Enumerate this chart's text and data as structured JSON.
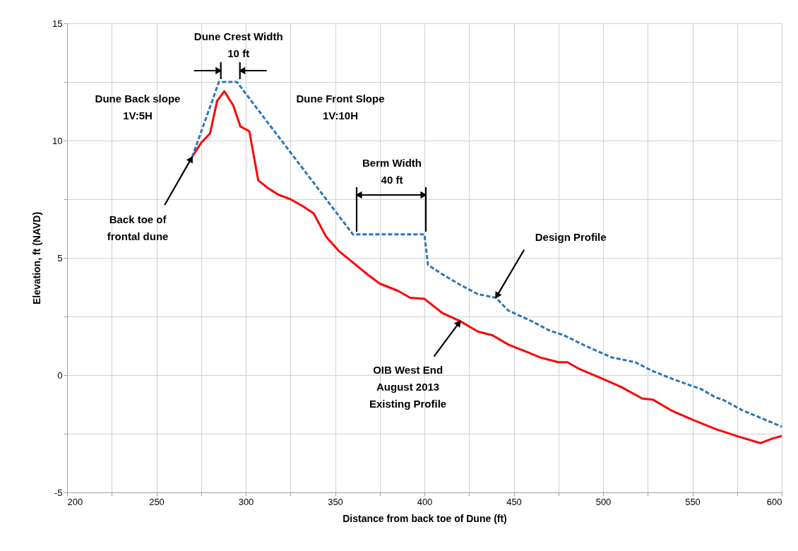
{
  "chart_data": {
    "type": "line",
    "xlabel": "Distance from back toe of Dune (ft)",
    "ylabel": "Elevation, ft (NAVD)",
    "xlim": [
      200,
      600
    ],
    "ylim": [
      -5,
      15
    ],
    "xticks": [
      200,
      {
        "value": 225,
        "label": null
      },
      250,
      {
        "value": 275,
        "label": null
      },
      300,
      {
        "value": 325,
        "label": null
      },
      350,
      {
        "value": 375,
        "label": null
      },
      400,
      {
        "value": 425,
        "label": null
      },
      450,
      {
        "value": 475,
        "label": null
      },
      500,
      {
        "value": 525,
        "label": null
      },
      550,
      {
        "value": 575,
        "label": null
      },
      600
    ],
    "yticks": [
      -5,
      {
        "value": -2.5,
        "label": null
      },
      0,
      {
        "value": 2.5,
        "label": null
      },
      5,
      {
        "value": 7.5,
        "label": null
      },
      10,
      {
        "value": 12.5,
        "label": null
      },
      15
    ],
    "grid": true,
    "legend": false,
    "series": [
      {
        "color": "#ff0000",
        "line_style": "solid",
        "x": [
          270,
          275,
          280,
          284,
          288,
          293,
          297,
          302,
          307,
          312,
          318,
          325,
          332,
          338,
          345,
          352,
          360,
          368,
          375,
          385,
          392,
          400,
          410,
          420,
          430,
          438,
          447,
          457,
          465,
          475,
          480,
          487,
          498,
          510,
          522,
          528,
          538,
          550,
          563,
          575,
          588,
          595,
          600
        ],
        "values": [
          9.3,
          9.9,
          10.3,
          11.7,
          12.1,
          11.5,
          10.6,
          10.4,
          8.3,
          8.0,
          7.7,
          7.5,
          7.2,
          6.9,
          5.9,
          5.3,
          4.8,
          4.3,
          3.9,
          3.6,
          3.3,
          3.25,
          2.65,
          2.3,
          1.85,
          1.7,
          1.3,
          1.0,
          0.75,
          0.55,
          0.55,
          0.25,
          -0.1,
          -0.5,
          -1.0,
          -1.05,
          -1.5,
          -1.9,
          -2.3,
          -2.6,
          -2.9,
          -2.7,
          -2.6
        ]
      },
      {
        "color": "#2e75b6",
        "line_style": "dashed",
        "x": [
          270,
          285,
          295,
          360,
          400,
          402,
          410,
          420,
          430,
          440,
          447,
          460,
          470,
          478,
          490,
          505,
          518,
          527,
          540,
          555,
          563,
          567,
          578,
          600
        ],
        "values": [
          9.3,
          12.5,
          12.5,
          6.0,
          6.0,
          4.7,
          4.3,
          3.85,
          3.45,
          3.3,
          2.75,
          2.3,
          1.9,
          1.7,
          1.25,
          0.75,
          0.55,
          0.2,
          -0.2,
          -0.6,
          -0.95,
          -1.05,
          -1.5,
          -2.2
        ]
      }
    ],
    "annotations": [
      {
        "text": "Dune Crest Width\n10 ft",
        "x": 290,
        "y": 12.5
      },
      "Dune Back slope\n1V:5H",
      "Dune Front Slope\n1V:10H",
      "Berm Width\n40 ft",
      {
        "text": "Back toe of\nfrontal dune",
        "x": 270,
        "y": 9.3
      },
      {
        "text": "Design Profile",
        "x": 440,
        "y": 3.3
      },
      {
        "text": "OIB West End\nAugust 2013\nExisting Profile",
        "x": 420,
        "y": 2.3
      }
    ]
  }
}
